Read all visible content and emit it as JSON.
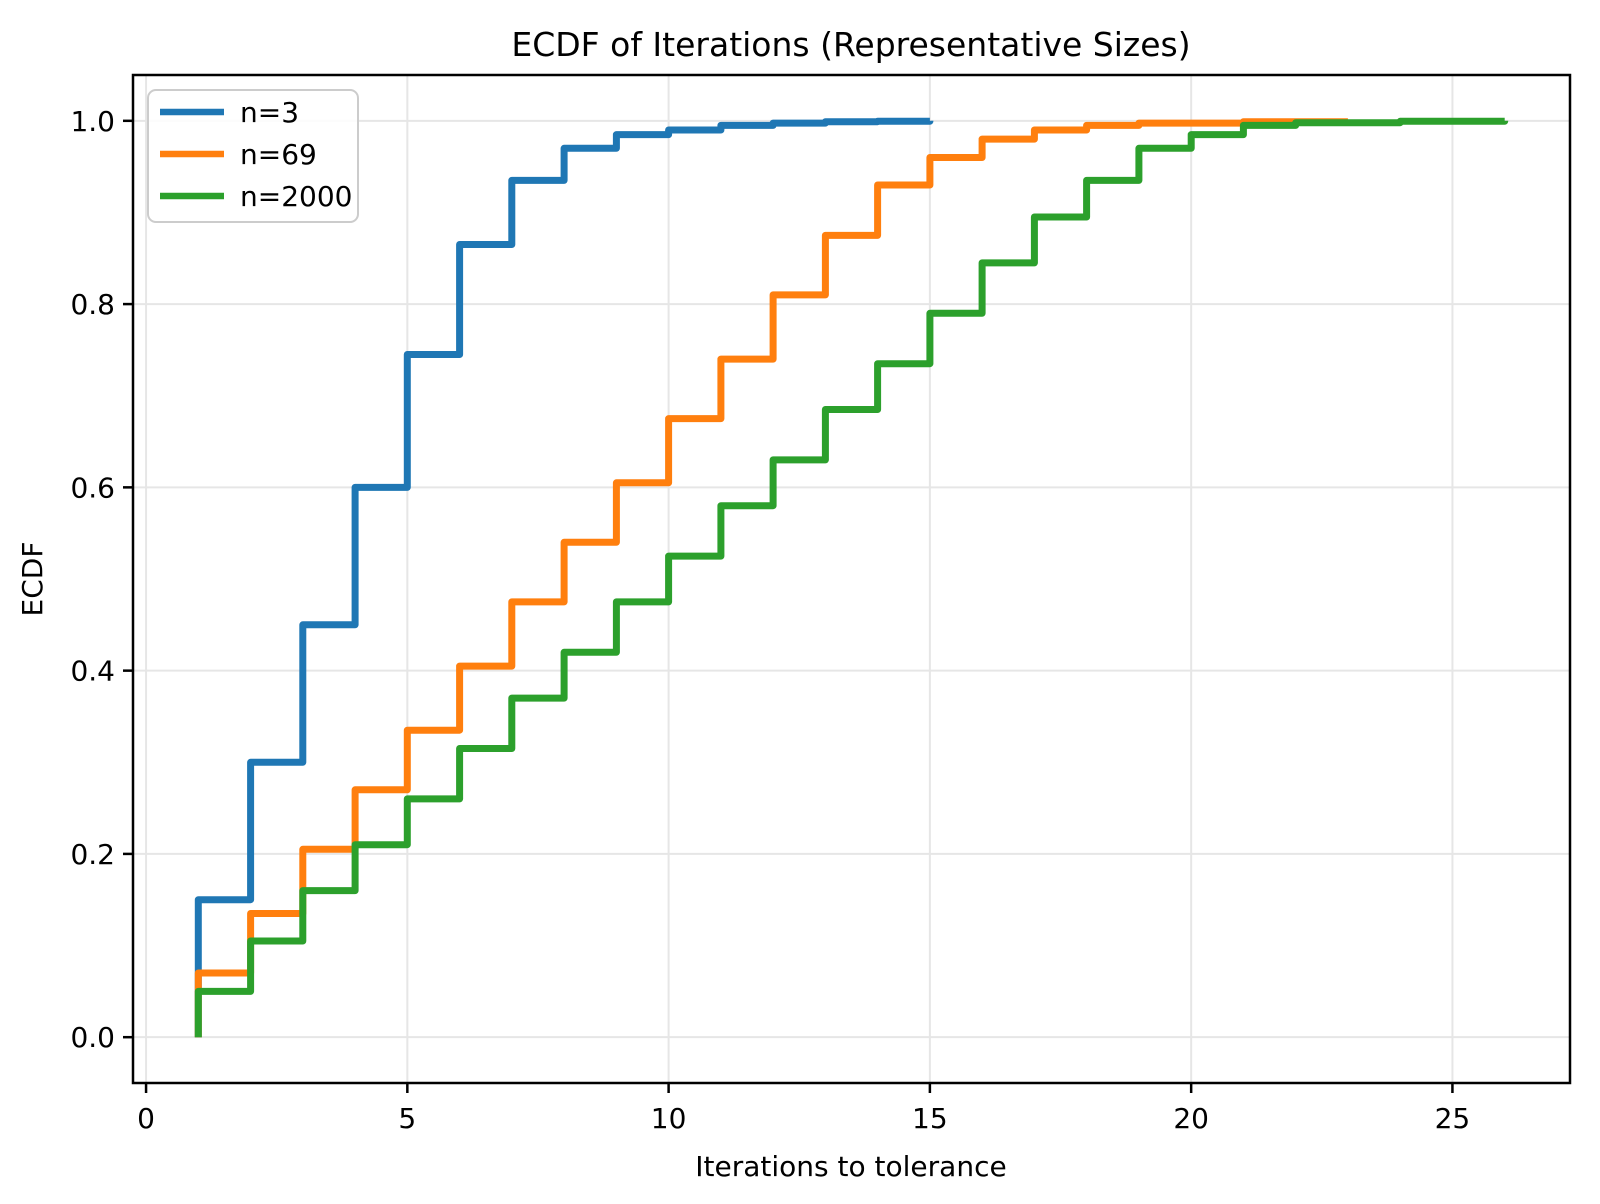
{
  "chart_data": {
    "type": "line",
    "subtype": "ecdf-step",
    "title": "ECDF of Iterations (Representative Sizes)",
    "xlabel": "Iterations to tolerance",
    "ylabel": "ECDF",
    "xlim": [
      -0.25,
      27.25
    ],
    "ylim": [
      -0.05,
      1.05
    ],
    "x_tick_values": [
      0,
      5,
      10,
      15,
      20,
      25
    ],
    "x_tick_labels": [
      "0",
      "5",
      "10",
      "15",
      "20",
      "25"
    ],
    "y_tick_values": [
      0.0,
      0.2,
      0.4,
      0.6,
      0.8,
      1.0
    ],
    "y_tick_labels": [
      "0.0",
      "0.2",
      "0.4",
      "0.6",
      "0.8",
      "1.0"
    ],
    "grid": true,
    "grid_color": "#e6e6e6",
    "axis_color": "#000000",
    "legend": {
      "position": "upper-left",
      "frame_color": "#cccccc"
    },
    "series": [
      {
        "name": "n=3",
        "color": "#1f77b4",
        "points": [
          [
            1,
            0.15
          ],
          [
            2,
            0.3
          ],
          [
            3,
            0.45
          ],
          [
            4,
            0.6
          ],
          [
            5,
            0.745
          ],
          [
            6,
            0.865
          ],
          [
            7,
            0.935
          ],
          [
            8,
            0.97
          ],
          [
            9,
            0.985
          ],
          [
            10,
            0.99
          ],
          [
            11,
            0.995
          ],
          [
            12,
            0.9975
          ],
          [
            13,
            0.999
          ],
          [
            14,
            0.9995
          ],
          [
            15,
            1.0
          ]
        ]
      },
      {
        "name": "n=69",
        "color": "#ff7f0e",
        "points": [
          [
            1,
            0.07
          ],
          [
            2,
            0.135
          ],
          [
            3,
            0.205
          ],
          [
            4,
            0.27
          ],
          [
            5,
            0.335
          ],
          [
            6,
            0.405
          ],
          [
            7,
            0.475
          ],
          [
            8,
            0.54
          ],
          [
            9,
            0.605
          ],
          [
            10,
            0.675
          ],
          [
            11,
            0.74
          ],
          [
            12,
            0.81
          ],
          [
            13,
            0.875
          ],
          [
            14,
            0.93
          ],
          [
            15,
            0.96
          ],
          [
            16,
            0.98
          ],
          [
            17,
            0.99
          ],
          [
            18,
            0.995
          ],
          [
            19,
            0.9975
          ],
          [
            21,
            0.999
          ],
          [
            23,
            1.0
          ]
        ]
      },
      {
        "name": "n=2000",
        "color": "#2ca02c",
        "points": [
          [
            1,
            0.05
          ],
          [
            2,
            0.105
          ],
          [
            3,
            0.16
          ],
          [
            4,
            0.21
          ],
          [
            5,
            0.26
          ],
          [
            6,
            0.315
          ],
          [
            7,
            0.37
          ],
          [
            8,
            0.42
          ],
          [
            9,
            0.475
          ],
          [
            10,
            0.525
          ],
          [
            11,
            0.58
          ],
          [
            12,
            0.63
          ],
          [
            13,
            0.685
          ],
          [
            14,
            0.735
          ],
          [
            15,
            0.79
          ],
          [
            16,
            0.845
          ],
          [
            17,
            0.895
          ],
          [
            18,
            0.935
          ],
          [
            19,
            0.97
          ],
          [
            20,
            0.985
          ],
          [
            21,
            0.995
          ],
          [
            22,
            0.998
          ],
          [
            24,
            0.9995
          ],
          [
            26,
            1.0
          ]
        ]
      }
    ]
  }
}
